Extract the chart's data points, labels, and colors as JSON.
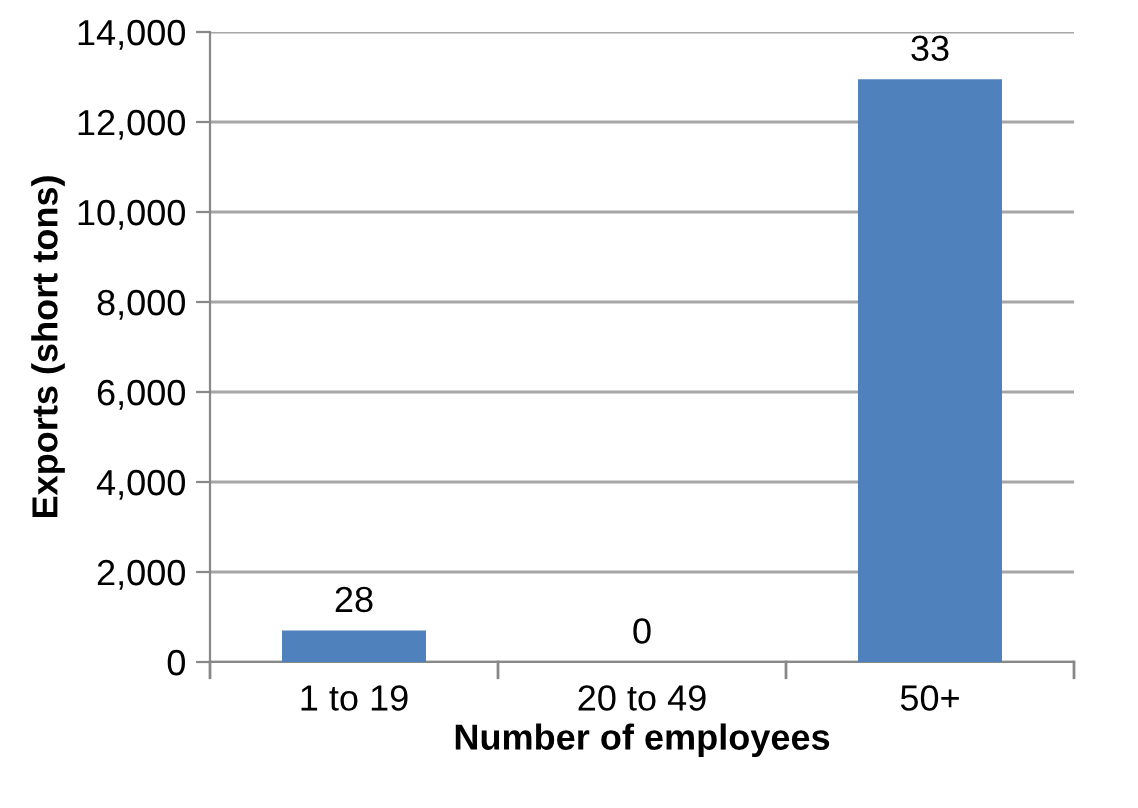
{
  "chart_data": {
    "type": "bar",
    "xlabel": "Number of employees",
    "ylabel": "Exports (short tons)",
    "categories": [
      "1 to 19",
      "20 to 49",
      "50+"
    ],
    "values": [
      700,
      0,
      12950
    ],
    "annotations": [
      {
        "text": "28",
        "x": "1 to 19",
        "y": 700
      },
      {
        "text": "0",
        "x": "20 to 49",
        "y": 0
      },
      {
        "text": "33",
        "x": "50+",
        "y": 12950
      }
    ],
    "color": "#4f81bd",
    "ylim": [
      0,
      14000
    ],
    "yticks": [
      {
        "value": 0,
        "label": "0"
      },
      {
        "value": 2000,
        "label": "2,000"
      },
      {
        "value": 4000,
        "label": "4,000"
      },
      {
        "value": 6000,
        "label": "6,000"
      },
      {
        "value": 8000,
        "label": "8,000"
      },
      {
        "value": 10000,
        "label": "10,000"
      },
      {
        "value": 12000,
        "label": "12,000"
      },
      {
        "value": 14000,
        "label": "14,000"
      }
    ],
    "grid": "y",
    "legend": false
  }
}
